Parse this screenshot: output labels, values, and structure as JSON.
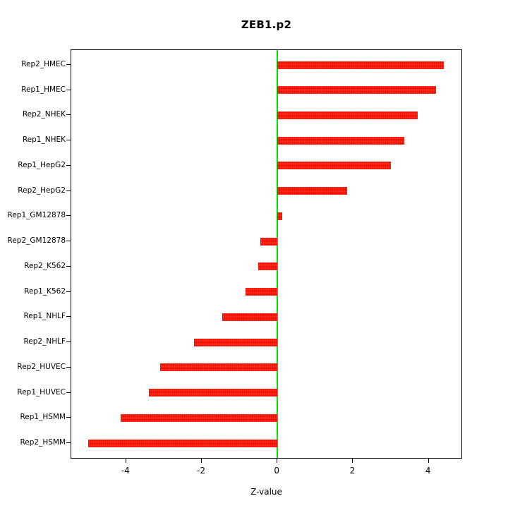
{
  "chart_data": {
    "type": "bar",
    "orientation": "horizontal",
    "title": "ZEB1.p2",
    "xlabel": "Z-value",
    "categories": [
      "Rep2_HMEC",
      "Rep1_HMEC",
      "Rep2_NHEK",
      "Rep1_NHEK",
      "Rep1_HepG2",
      "Rep2_HepG2",
      "Rep1_GM12878",
      "Rep2_GM12878",
      "Rep2_K562",
      "Rep1_K562",
      "Rep1_NHLF",
      "Rep2_NHLF",
      "Rep2_HUVEC",
      "Rep1_HUVEC",
      "Rep1_HSMM",
      "Rep2_HSMM"
    ],
    "values": [
      4.4,
      4.2,
      3.7,
      3.35,
      3.0,
      1.85,
      0.12,
      -0.45,
      -0.5,
      -0.85,
      -1.45,
      -2.2,
      -3.1,
      -3.4,
      -4.15,
      -5.0
    ],
    "xlim": [
      -5.45,
      4.9
    ],
    "xticks": [
      -4,
      -2,
      0,
      2,
      4
    ],
    "xtick_labels": [
      "-4",
      "-2",
      "0",
      "2",
      "4"
    ],
    "bar_color": "#ff0f00",
    "zero_line_color": "#00e400",
    "axis_color": "#000000",
    "background": "#ffffff",
    "grid": false,
    "legend": null
  }
}
